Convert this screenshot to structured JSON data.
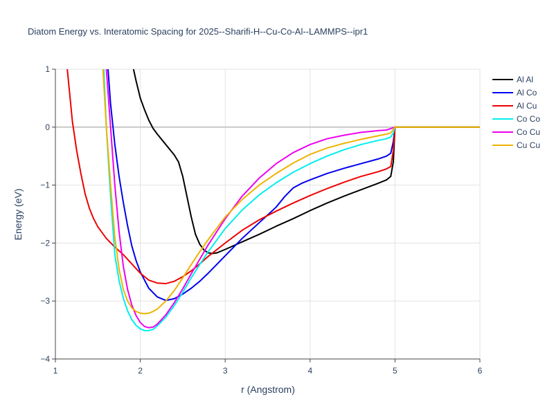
{
  "chart_data": {
    "type": "line",
    "title": "Diatom Energy vs. Interatomic Spacing for 2025--Sharifi-H--Cu-Co-Al--LAMMPS--ipr1",
    "xlabel": "r (Angstrom)",
    "ylabel": "Energy (eV)",
    "xlim": [
      1,
      6
    ],
    "ylim": [
      -4,
      1
    ],
    "xticks": [
      1,
      2,
      3,
      4,
      5,
      6
    ],
    "yticks": [
      -4,
      -3,
      -2,
      -1,
      0,
      1
    ],
    "xtick_labels": [
      "1",
      "2",
      "3",
      "4",
      "5",
      "6"
    ],
    "ytick_labels": [
      "−4",
      "−3",
      "−2",
      "−1",
      "0",
      "1"
    ],
    "grid": true,
    "legend_position": "top-right",
    "series": [
      {
        "name": "Al Al",
        "color": "#000000",
        "points": [
          [
            1.92,
            1.0
          ],
          [
            1.95,
            0.8
          ],
          [
            2.0,
            0.5
          ],
          [
            2.05,
            0.3
          ],
          [
            2.1,
            0.12
          ],
          [
            2.15,
            -0.02
          ],
          [
            2.2,
            -0.12
          ],
          [
            2.3,
            -0.3
          ],
          [
            2.4,
            -0.48
          ],
          [
            2.45,
            -0.6
          ],
          [
            2.5,
            -0.85
          ],
          [
            2.55,
            -1.2
          ],
          [
            2.6,
            -1.55
          ],
          [
            2.65,
            -1.85
          ],
          [
            2.7,
            -2.02
          ],
          [
            2.75,
            -2.12
          ],
          [
            2.8,
            -2.17
          ],
          [
            2.85,
            -2.18
          ],
          [
            2.9,
            -2.17
          ],
          [
            3.0,
            -2.11
          ],
          [
            3.2,
            -1.98
          ],
          [
            3.4,
            -1.85
          ],
          [
            3.6,
            -1.71
          ],
          [
            3.8,
            -1.58
          ],
          [
            4.0,
            -1.44
          ],
          [
            4.2,
            -1.31
          ],
          [
            4.4,
            -1.19
          ],
          [
            4.6,
            -1.08
          ],
          [
            4.8,
            -0.97
          ],
          [
            4.9,
            -0.91
          ],
          [
            4.95,
            -0.85
          ],
          [
            4.98,
            -0.6
          ],
          [
            5.0,
            0.0
          ],
          [
            6.0,
            0.0
          ]
        ]
      },
      {
        "name": "Al Co",
        "color": "#0000ee",
        "points": [
          [
            1.62,
            1.0
          ],
          [
            1.65,
            0.4
          ],
          [
            1.7,
            -0.3
          ],
          [
            1.75,
            -0.85
          ],
          [
            1.8,
            -1.3
          ],
          [
            1.85,
            -1.7
          ],
          [
            1.9,
            -2.05
          ],
          [
            1.95,
            -2.3
          ],
          [
            2.0,
            -2.5
          ],
          [
            2.1,
            -2.78
          ],
          [
            2.2,
            -2.93
          ],
          [
            2.3,
            -2.99
          ],
          [
            2.4,
            -2.96
          ],
          [
            2.5,
            -2.88
          ],
          [
            2.6,
            -2.78
          ],
          [
            2.7,
            -2.66
          ],
          [
            2.8,
            -2.52
          ],
          [
            3.0,
            -2.22
          ],
          [
            3.2,
            -1.92
          ],
          [
            3.4,
            -1.65
          ],
          [
            3.6,
            -1.38
          ],
          [
            3.7,
            -1.2
          ],
          [
            3.8,
            -1.05
          ],
          [
            3.9,
            -0.97
          ],
          [
            4.0,
            -0.91
          ],
          [
            4.2,
            -0.8
          ],
          [
            4.4,
            -0.71
          ],
          [
            4.6,
            -0.63
          ],
          [
            4.8,
            -0.55
          ],
          [
            4.9,
            -0.5
          ],
          [
            4.95,
            -0.45
          ],
          [
            4.98,
            -0.25
          ],
          [
            5.0,
            0.0
          ]
        ]
      },
      {
        "name": "Al Cu",
        "color": "#ee0000",
        "points": [
          [
            1.14,
            1.0
          ],
          [
            1.2,
            0.1
          ],
          [
            1.25,
            -0.4
          ],
          [
            1.3,
            -0.8
          ],
          [
            1.35,
            -1.15
          ],
          [
            1.4,
            -1.4
          ],
          [
            1.45,
            -1.58
          ],
          [
            1.5,
            -1.72
          ],
          [
            1.6,
            -1.92
          ],
          [
            1.7,
            -2.07
          ],
          [
            1.8,
            -2.2
          ],
          [
            1.9,
            -2.36
          ],
          [
            2.0,
            -2.52
          ],
          [
            2.1,
            -2.64
          ],
          [
            2.2,
            -2.69
          ],
          [
            2.3,
            -2.7
          ],
          [
            2.4,
            -2.66
          ],
          [
            2.5,
            -2.58
          ],
          [
            2.6,
            -2.48
          ],
          [
            2.7,
            -2.36
          ],
          [
            2.8,
            -2.23
          ],
          [
            3.0,
            -2.0
          ],
          [
            3.2,
            -1.78
          ],
          [
            3.4,
            -1.6
          ],
          [
            3.6,
            -1.45
          ],
          [
            3.8,
            -1.31
          ],
          [
            4.0,
            -1.18
          ],
          [
            4.2,
            -1.06
          ],
          [
            4.4,
            -0.95
          ],
          [
            4.6,
            -0.85
          ],
          [
            4.8,
            -0.77
          ],
          [
            4.9,
            -0.72
          ],
          [
            4.95,
            -0.68
          ],
          [
            4.98,
            -0.4
          ],
          [
            5.0,
            0.0
          ]
        ]
      },
      {
        "name": "Co Co",
        "color": "#00eeee",
        "points": [
          [
            1.57,
            1.0
          ],
          [
            1.6,
            0.0
          ],
          [
            1.65,
            -1.2
          ],
          [
            1.7,
            -2.2
          ],
          [
            1.75,
            -2.65
          ],
          [
            1.8,
            -2.95
          ],
          [
            1.85,
            -3.17
          ],
          [
            1.9,
            -3.32
          ],
          [
            1.95,
            -3.42
          ],
          [
            2.0,
            -3.48
          ],
          [
            2.05,
            -3.51
          ],
          [
            2.1,
            -3.51
          ],
          [
            2.15,
            -3.49
          ],
          [
            2.2,
            -3.43
          ],
          [
            2.3,
            -3.28
          ],
          [
            2.4,
            -3.08
          ],
          [
            2.5,
            -2.85
          ],
          [
            2.6,
            -2.6
          ],
          [
            2.7,
            -2.37
          ],
          [
            2.8,
            -2.15
          ],
          [
            3.0,
            -1.75
          ],
          [
            3.2,
            -1.43
          ],
          [
            3.4,
            -1.17
          ],
          [
            3.6,
            -0.96
          ],
          [
            3.8,
            -0.78
          ],
          [
            4.0,
            -0.63
          ],
          [
            4.2,
            -0.5
          ],
          [
            4.4,
            -0.39
          ],
          [
            4.6,
            -0.3
          ],
          [
            4.8,
            -0.23
          ],
          [
            4.9,
            -0.2
          ],
          [
            4.95,
            -0.17
          ],
          [
            4.98,
            -0.1
          ],
          [
            5.0,
            0.0
          ]
        ]
      },
      {
        "name": "Co Cu",
        "color": "#ee00ee",
        "points": [
          [
            1.6,
            1.0
          ],
          [
            1.65,
            0.0
          ],
          [
            1.7,
            -1.0
          ],
          [
            1.75,
            -1.8
          ],
          [
            1.8,
            -2.4
          ],
          [
            1.85,
            -2.8
          ],
          [
            1.9,
            -3.07
          ],
          [
            1.95,
            -3.25
          ],
          [
            2.0,
            -3.37
          ],
          [
            2.05,
            -3.44
          ],
          [
            2.1,
            -3.46
          ],
          [
            2.15,
            -3.45
          ],
          [
            2.2,
            -3.4
          ],
          [
            2.3,
            -3.24
          ],
          [
            2.4,
            -3.03
          ],
          [
            2.5,
            -2.79
          ],
          [
            2.6,
            -2.53
          ],
          [
            2.7,
            -2.28
          ],
          [
            2.8,
            -2.03
          ],
          [
            3.0,
            -1.58
          ],
          [
            3.2,
            -1.19
          ],
          [
            3.4,
            -0.88
          ],
          [
            3.6,
            -0.63
          ],
          [
            3.8,
            -0.44
          ],
          [
            4.0,
            -0.3
          ],
          [
            4.2,
            -0.2
          ],
          [
            4.4,
            -0.14
          ],
          [
            4.6,
            -0.09
          ],
          [
            4.8,
            -0.06
          ],
          [
            4.9,
            -0.05
          ],
          [
            5.0,
            0.0
          ]
        ]
      },
      {
        "name": "Cu Cu",
        "color": "#eeb400",
        "points": [
          [
            1.56,
            1.0
          ],
          [
            1.6,
            0.0
          ],
          [
            1.65,
            -1.0
          ],
          [
            1.7,
            -1.9
          ],
          [
            1.75,
            -2.45
          ],
          [
            1.8,
            -2.8
          ],
          [
            1.85,
            -3.0
          ],
          [
            1.9,
            -3.12
          ],
          [
            1.95,
            -3.18
          ],
          [
            2.0,
            -3.21
          ],
          [
            2.05,
            -3.22
          ],
          [
            2.1,
            -3.21
          ],
          [
            2.15,
            -3.18
          ],
          [
            2.2,
            -3.14
          ],
          [
            2.3,
            -3.0
          ],
          [
            2.4,
            -2.82
          ],
          [
            2.5,
            -2.6
          ],
          [
            2.6,
            -2.37
          ],
          [
            2.7,
            -2.15
          ],
          [
            2.8,
            -1.94
          ],
          [
            3.0,
            -1.55
          ],
          [
            3.2,
            -1.25
          ],
          [
            3.4,
            -1.0
          ],
          [
            3.6,
            -0.8
          ],
          [
            3.8,
            -0.62
          ],
          [
            4.0,
            -0.47
          ],
          [
            4.2,
            -0.36
          ],
          [
            4.4,
            -0.28
          ],
          [
            4.6,
            -0.21
          ],
          [
            4.8,
            -0.15
          ],
          [
            4.9,
            -0.12
          ],
          [
            4.95,
            -0.1
          ],
          [
            5.0,
            0.0
          ],
          [
            6.0,
            0.0
          ]
        ]
      }
    ]
  }
}
